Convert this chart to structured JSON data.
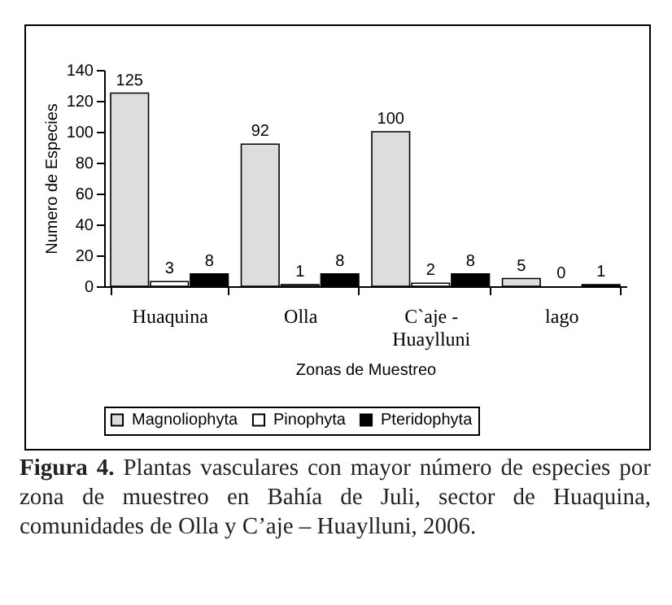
{
  "chart_data": {
    "type": "bar",
    "categories": [
      "Huaquina",
      "Olla",
      "C`aje - Huaylluni",
      "lago"
    ],
    "series": [
      {
        "name": "Magnoliophyta",
        "color": "#dddddd",
        "values": [
          125,
          92,
          100,
          5
        ]
      },
      {
        "name": "Pinophyta",
        "color": "#ffffff",
        "values": [
          3,
          1,
          2,
          0
        ]
      },
      {
        "name": "Pteridophyta",
        "color": "#000000",
        "values": [
          8,
          8,
          8,
          1
        ]
      }
    ],
    "xlabel": "Zonas de Muestreo",
    "ylabel": "Numero de Especies",
    "ylim": [
      0,
      140
    ],
    "yticks": [
      0,
      20,
      40,
      60,
      80,
      100,
      120,
      140
    ],
    "data_labels": true,
    "grid": false,
    "legend": "bottom",
    "annotations": [
      "Figura 4. Plantas vasculares con mayor número de especies por zona de muestreo en Bahía de Juli, sector de Huaquina, comunidades de Olla y C’aje – Huaylluni, 2006."
    ]
  }
}
